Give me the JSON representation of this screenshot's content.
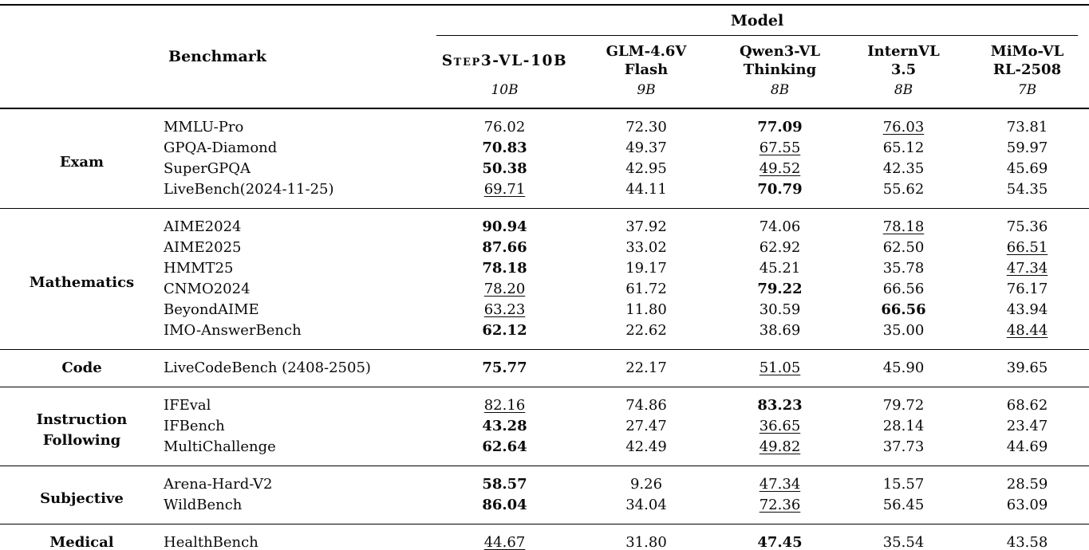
{
  "table": {
    "benchmark_label": "Benchmark",
    "model_label": "Model",
    "models": [
      {
        "line1": "Step3-VL-10B",
        "line2": "",
        "size": "10B",
        "smallcaps": true
      },
      {
        "line1": "GLM-4.6V",
        "line2": "Flash",
        "size": "9B",
        "smallcaps": false
      },
      {
        "line1": "Qwen3-VL",
        "line2": "Thinking",
        "size": "8B",
        "smallcaps": false
      },
      {
        "line1": "InternVL",
        "line2": "3.5",
        "size": "8B",
        "smallcaps": false
      },
      {
        "line1": "MiMo-VL",
        "line2": "RL-2508",
        "size": "7B",
        "smallcaps": false
      }
    ],
    "sections": [
      {
        "category": "Exam",
        "rows": [
          {
            "benchmark": "MMLU-Pro",
            "values": [
              {
                "v": "76.02",
                "style": ""
              },
              {
                "v": "72.30",
                "style": ""
              },
              {
                "v": "77.09",
                "style": "bold"
              },
              {
                "v": "76.03",
                "style": "underline"
              },
              {
                "v": "73.81",
                "style": ""
              }
            ]
          },
          {
            "benchmark": "GPQA-Diamond",
            "values": [
              {
                "v": "70.83",
                "style": "bold"
              },
              {
                "v": "49.37",
                "style": ""
              },
              {
                "v": "67.55",
                "style": "underline"
              },
              {
                "v": "65.12",
                "style": ""
              },
              {
                "v": "59.97",
                "style": ""
              }
            ]
          },
          {
            "benchmark": "SuperGPQA",
            "values": [
              {
                "v": "50.38",
                "style": "bold"
              },
              {
                "v": "42.95",
                "style": ""
              },
              {
                "v": "49.52",
                "style": "underline"
              },
              {
                "v": "42.35",
                "style": ""
              },
              {
                "v": "45.69",
                "style": ""
              }
            ]
          },
          {
            "benchmark": "LiveBench(2024-11-25)",
            "values": [
              {
                "v": "69.71",
                "style": "underline"
              },
              {
                "v": "44.11",
                "style": ""
              },
              {
                "v": "70.79",
                "style": "bold"
              },
              {
                "v": "55.62",
                "style": ""
              },
              {
                "v": "54.35",
                "style": ""
              }
            ]
          }
        ]
      },
      {
        "category": "Mathematics",
        "rows": [
          {
            "benchmark": "AIME2024",
            "values": [
              {
                "v": "90.94",
                "style": "bold"
              },
              {
                "v": "37.92",
                "style": ""
              },
              {
                "v": "74.06",
                "style": ""
              },
              {
                "v": "78.18",
                "style": "underline"
              },
              {
                "v": "75.36",
                "style": ""
              }
            ]
          },
          {
            "benchmark": "AIME2025",
            "values": [
              {
                "v": "87.66",
                "style": "bold"
              },
              {
                "v": "33.02",
                "style": ""
              },
              {
                "v": "62.92",
                "style": ""
              },
              {
                "v": "62.50",
                "style": ""
              },
              {
                "v": "66.51",
                "style": "underline"
              }
            ]
          },
          {
            "benchmark": "HMMT25",
            "values": [
              {
                "v": "78.18",
                "style": "bold"
              },
              {
                "v": "19.17",
                "style": ""
              },
              {
                "v": "45.21",
                "style": ""
              },
              {
                "v": "35.78",
                "style": ""
              },
              {
                "v": "47.34",
                "style": "underline"
              }
            ]
          },
          {
            "benchmark": "CNMO2024",
            "values": [
              {
                "v": "78.20",
                "style": "underline"
              },
              {
                "v": "61.72",
                "style": ""
              },
              {
                "v": "79.22",
                "style": "bold"
              },
              {
                "v": "66.56",
                "style": ""
              },
              {
                "v": "76.17",
                "style": ""
              }
            ]
          },
          {
            "benchmark": "BeyondAIME",
            "values": [
              {
                "v": "63.23",
                "style": "underline"
              },
              {
                "v": "11.80",
                "style": ""
              },
              {
                "v": "30.59",
                "style": ""
              },
              {
                "v": "66.56",
                "style": "bold"
              },
              {
                "v": "43.94",
                "style": ""
              }
            ]
          },
          {
            "benchmark": "IMO-AnswerBench",
            "values": [
              {
                "v": "62.12",
                "style": "bold"
              },
              {
                "v": "22.62",
                "style": ""
              },
              {
                "v": "38.69",
                "style": ""
              },
              {
                "v": "35.00",
                "style": ""
              },
              {
                "v": "48.44",
                "style": "underline"
              }
            ]
          }
        ]
      },
      {
        "category": "Code",
        "rows": [
          {
            "benchmark": "LiveCodeBench (2408-2505)",
            "values": [
              {
                "v": "75.77",
                "style": "bold"
              },
              {
                "v": "22.17",
                "style": ""
              },
              {
                "v": "51.05",
                "style": "underline"
              },
              {
                "v": "45.90",
                "style": ""
              },
              {
                "v": "39.65",
                "style": ""
              }
            ]
          }
        ]
      },
      {
        "category": "Instruction Following",
        "rows": [
          {
            "benchmark": "IFEval",
            "values": [
              {
                "v": "82.16",
                "style": "underline"
              },
              {
                "v": "74.86",
                "style": ""
              },
              {
                "v": "83.23",
                "style": "bold"
              },
              {
                "v": "79.72",
                "style": ""
              },
              {
                "v": "68.62",
                "style": ""
              }
            ]
          },
          {
            "benchmark": "IFBench",
            "values": [
              {
                "v": "43.28",
                "style": "bold"
              },
              {
                "v": "27.47",
                "style": ""
              },
              {
                "v": "36.65",
                "style": "underline"
              },
              {
                "v": "28.14",
                "style": ""
              },
              {
                "v": "23.47",
                "style": ""
              }
            ]
          },
          {
            "benchmark": "MultiChallenge",
            "values": [
              {
                "v": "62.64",
                "style": "bold"
              },
              {
                "v": "42.49",
                "style": ""
              },
              {
                "v": "49.82",
                "style": "underline"
              },
              {
                "v": "37.73",
                "style": ""
              },
              {
                "v": "44.69",
                "style": ""
              }
            ]
          }
        ]
      },
      {
        "category": "Subjective",
        "rows": [
          {
            "benchmark": "Arena-Hard-V2",
            "values": [
              {
                "v": "58.57",
                "style": "bold"
              },
              {
                "v": "9.26",
                "style": ""
              },
              {
                "v": "47.34",
                "style": "underline"
              },
              {
                "v": "15.57",
                "style": ""
              },
              {
                "v": "28.59",
                "style": ""
              }
            ]
          },
          {
            "benchmark": "WildBench",
            "values": [
              {
                "v": "86.04",
                "style": "bold"
              },
              {
                "v": "34.04",
                "style": ""
              },
              {
                "v": "72.36",
                "style": "underline"
              },
              {
                "v": "56.45",
                "style": ""
              },
              {
                "v": "63.09",
                "style": ""
              }
            ]
          }
        ]
      },
      {
        "category": "Medical",
        "rows": [
          {
            "benchmark": "HealthBench",
            "values": [
              {
                "v": "44.67",
                "style": "underline"
              },
              {
                "v": "31.80",
                "style": ""
              },
              {
                "v": "47.45",
                "style": "bold"
              },
              {
                "v": "35.54",
                "style": ""
              },
              {
                "v": "43.58",
                "style": ""
              }
            ]
          }
        ]
      }
    ]
  }
}
